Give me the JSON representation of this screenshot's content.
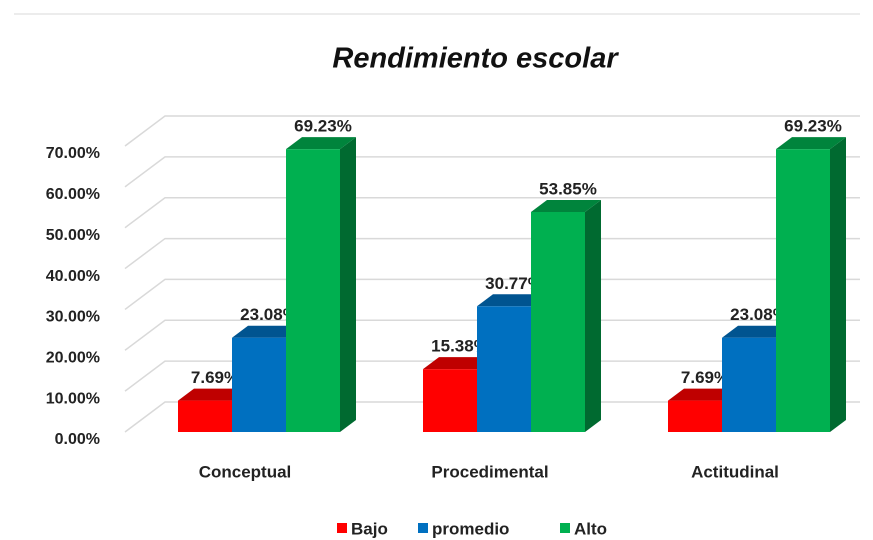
{
  "chart_data": {
    "type": "bar3d",
    "title": "Rendimiento escolar",
    "categories": [
      "Conceptual",
      "Procedimental",
      "Actitudinal"
    ],
    "series": [
      {
        "name": "Bajo",
        "color": "#ff0000",
        "values": [
          7.69,
          15.38,
          7.69
        ],
        "value_labels": [
          "7.69%",
          "15.38%",
          "7.69%"
        ]
      },
      {
        "name": "promedio",
        "color": "#0070c0",
        "values": [
          23.08,
          30.77,
          23.08
        ],
        "value_labels": [
          "23.08%",
          "30.77%",
          "23.08%"
        ]
      },
      {
        "name": "Alto",
        "color": "#00b050",
        "values": [
          69.23,
          53.85,
          69.23
        ],
        "value_labels": [
          "69.23%",
          "53.85%",
          "69.23%"
        ]
      }
    ],
    "ylim": [
      0,
      70
    ],
    "yticks": [
      {
        "value": 0,
        "label": "0.00%"
      },
      {
        "value": 10,
        "label": "10.00%"
      },
      {
        "value": 20,
        "label": "20.00%"
      },
      {
        "value": 30,
        "label": "30.00%"
      },
      {
        "value": 40,
        "label": "40.00%"
      },
      {
        "value": 50,
        "label": "50.00%"
      },
      {
        "value": 60,
        "label": "60.00%"
      },
      {
        "value": 70,
        "label": "70.00%"
      }
    ],
    "grid": true,
    "legend": "bottom"
  }
}
